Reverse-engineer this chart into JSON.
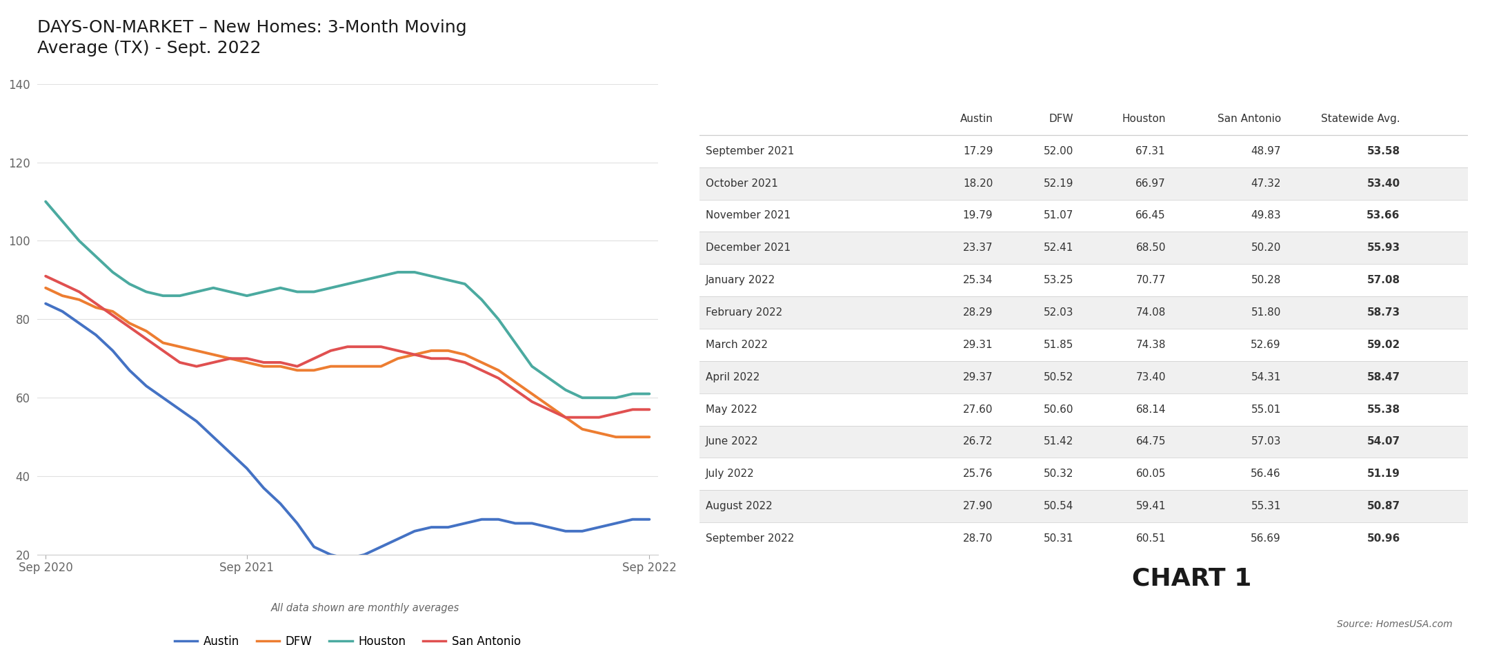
{
  "title": "DAYS-ON-MARKET – New Homes: 3-Month Moving\nAverage (TX) - Sept. 2022",
  "subtitle": "All data shown are monthly averages",
  "chart1_label": "CHART 1",
  "source": "Source: HomesUSA.com",
  "series": {
    "Austin": {
      "color": "#4472C4",
      "values": [
        84,
        82,
        79,
        76,
        72,
        67,
        63,
        60,
        57,
        54,
        50,
        46,
        42,
        37,
        33,
        28,
        22,
        20,
        19,
        20,
        22,
        24,
        26,
        27,
        27,
        28,
        29,
        29,
        28,
        28,
        27,
        26,
        26,
        27,
        28,
        29,
        29
      ]
    },
    "DFW": {
      "color": "#ED7D31",
      "values": [
        88,
        86,
        85,
        83,
        82,
        79,
        77,
        74,
        73,
        72,
        71,
        70,
        69,
        68,
        68,
        67,
        67,
        68,
        68,
        68,
        68,
        70,
        71,
        72,
        72,
        71,
        69,
        67,
        64,
        61,
        58,
        55,
        52,
        51,
        50,
        50,
        50
      ]
    },
    "Houston": {
      "color": "#4BAAA0",
      "values": [
        110,
        105,
        100,
        96,
        92,
        89,
        87,
        86,
        86,
        87,
        88,
        87,
        86,
        87,
        88,
        87,
        87,
        88,
        89,
        90,
        91,
        92,
        92,
        91,
        90,
        89,
        85,
        80,
        74,
        68,
        65,
        62,
        60,
        60,
        60,
        61,
        61
      ]
    },
    "San Antonio": {
      "color": "#E05050",
      "values": [
        91,
        89,
        87,
        84,
        81,
        78,
        75,
        72,
        69,
        68,
        69,
        70,
        70,
        69,
        69,
        68,
        70,
        72,
        73,
        73,
        73,
        72,
        71,
        70,
        70,
        69,
        67,
        65,
        62,
        59,
        57,
        55,
        55,
        55,
        56,
        57,
        57
      ]
    }
  },
  "x_ticks": [
    0,
    12,
    24,
    36
  ],
  "x_labels": [
    "Sep 2020",
    "Sep 2021",
    "",
    "Sep 2022"
  ],
  "ylim": [
    20,
    140
  ],
  "yticks": [
    20,
    40,
    60,
    80,
    100,
    120,
    140
  ],
  "table": {
    "headers": [
      "",
      "Austin",
      "DFW",
      "Houston",
      "San Antonio",
      "Statewide Avg."
    ],
    "data": [
      [
        "September 2021",
        17.29,
        52.0,
        67.31,
        48.97,
        53.58
      ],
      [
        "October 2021",
        18.2,
        52.19,
        66.97,
        47.32,
        53.4
      ],
      [
        "November 2021",
        19.79,
        51.07,
        66.45,
        49.83,
        53.66
      ],
      [
        "December 2021",
        23.37,
        52.41,
        68.5,
        50.2,
        55.93
      ],
      [
        "January 2022",
        25.34,
        53.25,
        70.77,
        50.28,
        57.08
      ],
      [
        "February 2022",
        28.29,
        52.03,
        74.08,
        51.8,
        58.73
      ],
      [
        "March 2022",
        29.31,
        51.85,
        74.38,
        52.69,
        59.02
      ],
      [
        "April 2022",
        29.37,
        50.52,
        73.4,
        54.31,
        58.47
      ],
      [
        "May 2022",
        27.6,
        50.6,
        68.14,
        55.01,
        55.38
      ],
      [
        "June 2022",
        26.72,
        51.42,
        64.75,
        57.03,
        54.07
      ],
      [
        "July 2022",
        25.76,
        50.32,
        60.05,
        56.46,
        51.19
      ],
      [
        "August 2022",
        27.9,
        50.54,
        59.41,
        55.31,
        50.87
      ],
      [
        "September 2022",
        28.7,
        50.31,
        60.51,
        56.69,
        50.96
      ]
    ]
  },
  "bg_color": "#FFFFFF",
  "grid_color": "#E0E0E0",
  "table_alt_row": "#F0F0F0",
  "title_fontsize": 18,
  "axis_fontsize": 12,
  "legend_fontsize": 12,
  "cell_fontsize": 11,
  "header_fontsize": 11
}
